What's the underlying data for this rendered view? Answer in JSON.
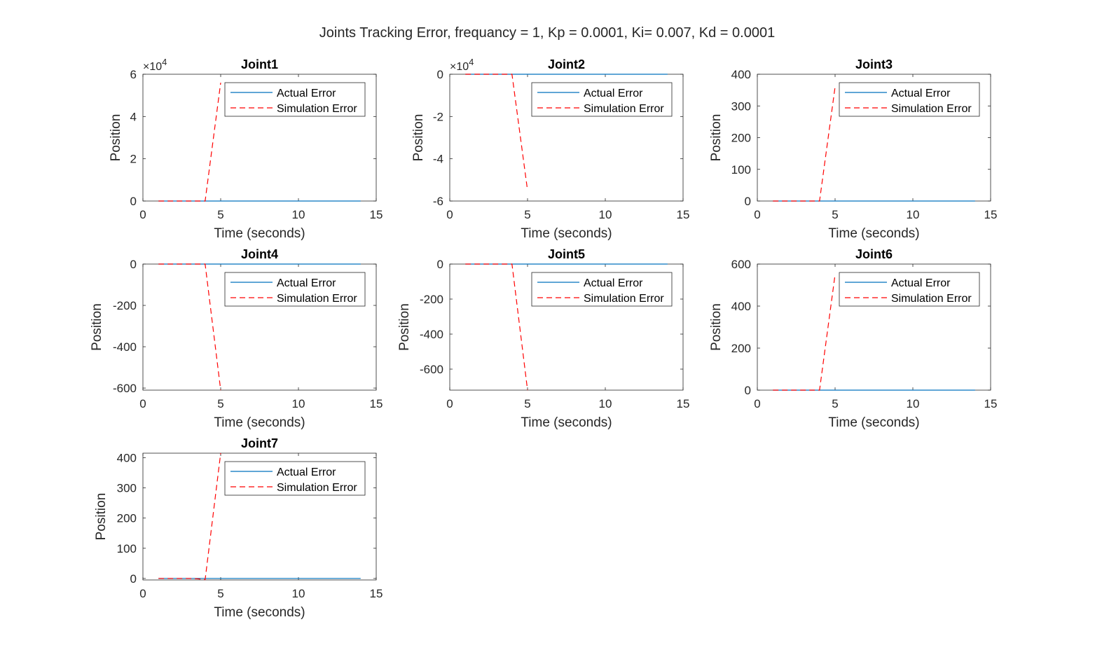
{
  "figure_title": "Joints Tracking Error, frequancy = 1, Kp = 0.0001, Ki= 0.007, Kd = 0.0001",
  "colors": {
    "actual": "#0072BD",
    "simulation": "#FF0000",
    "axis": "#262626"
  },
  "chart_data": [
    {
      "type": "line",
      "title": "Joint1",
      "xlabel": "Time (seconds)",
      "ylabel": "Position",
      "xlim": [
        0,
        15
      ],
      "ylim": [
        0,
        60000
      ],
      "xticks": [
        0,
        5,
        10,
        15
      ],
      "yticks": [
        0,
        20000,
        40000,
        60000
      ],
      "ytick_labels": [
        "0",
        "2",
        "4",
        "6"
      ],
      "exponent_label": "×10",
      "exponent_power": "4",
      "legend_position": "top-right",
      "series": [
        {
          "name": "Actual Error",
          "x": [
            1,
            14
          ],
          "y": [
            0,
            0
          ]
        },
        {
          "name": "Simulation Error",
          "x": [
            1,
            2,
            3,
            4,
            5
          ],
          "y": [
            0,
            0,
            0,
            0,
            56000
          ]
        }
      ]
    },
    {
      "type": "line",
      "title": "Joint2",
      "xlabel": "Time (seconds)",
      "ylabel": "Position",
      "xlim": [
        0,
        15
      ],
      "ylim": [
        -60000,
        0
      ],
      "xticks": [
        0,
        5,
        10,
        15
      ],
      "yticks": [
        -60000,
        -40000,
        -20000,
        0
      ],
      "ytick_labels": [
        "-6",
        "-4",
        "-2",
        "0"
      ],
      "exponent_label": "×10",
      "exponent_power": "4",
      "legend_position": "top-right",
      "series": [
        {
          "name": "Actual Error",
          "x": [
            1,
            14
          ],
          "y": [
            0,
            0
          ]
        },
        {
          "name": "Simulation Error",
          "x": [
            1,
            2,
            3,
            4,
            5
          ],
          "y": [
            0,
            0,
            0,
            0,
            -55000
          ]
        }
      ]
    },
    {
      "type": "line",
      "title": "Joint3",
      "xlabel": "Time (seconds)",
      "ylabel": "Position",
      "xlim": [
        0,
        15
      ],
      "ylim": [
        0,
        400
      ],
      "xticks": [
        0,
        5,
        10,
        15
      ],
      "yticks": [
        0,
        100,
        200,
        300,
        400
      ],
      "ytick_labels": [
        "0",
        "100",
        "200",
        "300",
        "400"
      ],
      "legend_position": "top-right",
      "series": [
        {
          "name": "Actual Error",
          "x": [
            1,
            14
          ],
          "y": [
            0,
            0
          ]
        },
        {
          "name": "Simulation Error",
          "x": [
            1,
            2,
            3,
            4,
            5
          ],
          "y": [
            0,
            0,
            0,
            0,
            360
          ]
        }
      ]
    },
    {
      "type": "line",
      "title": "Joint4",
      "xlabel": "Time (seconds)",
      "ylabel": "Position",
      "xlim": [
        0,
        15
      ],
      "ylim": [
        -610,
        0
      ],
      "xticks": [
        0,
        5,
        10,
        15
      ],
      "yticks": [
        -600,
        -400,
        -200,
        0
      ],
      "ytick_labels": [
        "-600",
        "-400",
        "-200",
        "0"
      ],
      "legend_position": "top-right",
      "series": [
        {
          "name": "Actual Error",
          "x": [
            1,
            14
          ],
          "y": [
            0,
            0
          ]
        },
        {
          "name": "Simulation Error",
          "x": [
            1,
            2,
            3,
            4,
            5
          ],
          "y": [
            0,
            0,
            0,
            0,
            -610
          ]
        }
      ]
    },
    {
      "type": "line",
      "title": "Joint5",
      "xlabel": "Time (seconds)",
      "ylabel": "Position",
      "xlim": [
        0,
        15
      ],
      "ylim": [
        -720,
        0
      ],
      "xticks": [
        0,
        5,
        10,
        15
      ],
      "yticks": [
        -600,
        -400,
        -200,
        0
      ],
      "ytick_labels": [
        "-600",
        "-400",
        "-200",
        "0"
      ],
      "legend_position": "top-right",
      "series": [
        {
          "name": "Actual Error",
          "x": [
            1,
            14
          ],
          "y": [
            0,
            0
          ]
        },
        {
          "name": "Simulation Error",
          "x": [
            1,
            2,
            3,
            4,
            5
          ],
          "y": [
            0,
            0,
            0,
            0,
            -720
          ]
        }
      ]
    },
    {
      "type": "line",
      "title": "Joint6",
      "xlabel": "Time (seconds)",
      "ylabel": "Position",
      "xlim": [
        0,
        15
      ],
      "ylim": [
        0,
        600
      ],
      "xticks": [
        0,
        5,
        10,
        15
      ],
      "yticks": [
        0,
        200,
        400,
        600
      ],
      "ytick_labels": [
        "0",
        "200",
        "400",
        "600"
      ],
      "legend_position": "top-right",
      "series": [
        {
          "name": "Actual Error",
          "x": [
            1,
            14
          ],
          "y": [
            0,
            0
          ]
        },
        {
          "name": "Simulation Error",
          "x": [
            1,
            2,
            3,
            4,
            5
          ],
          "y": [
            0,
            0,
            0,
            0,
            550
          ]
        }
      ]
    },
    {
      "type": "line",
      "title": "Joint7",
      "xlabel": "Time (seconds)",
      "ylabel": "Position",
      "xlim": [
        0,
        15
      ],
      "ylim": [
        -5,
        415
      ],
      "xticks": [
        0,
        5,
        10,
        15
      ],
      "yticks": [
        0,
        100,
        200,
        300,
        400
      ],
      "ytick_labels": [
        "0",
        "100",
        "200",
        "300",
        "400"
      ],
      "legend_position": "top-right",
      "series": [
        {
          "name": "Actual Error",
          "x": [
            1,
            14
          ],
          "y": [
            0,
            0
          ]
        },
        {
          "name": "Simulation Error",
          "x": [
            1,
            2,
            3,
            3.5,
            4,
            5
          ],
          "y": [
            0,
            0,
            0,
            -1,
            -4,
            415
          ]
        }
      ]
    }
  ]
}
